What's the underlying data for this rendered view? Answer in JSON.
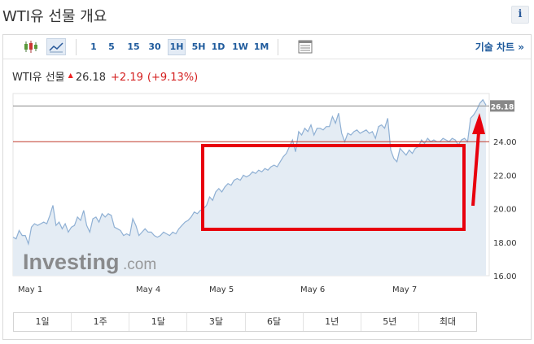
{
  "header": {
    "title": "WTI유 선물 개요",
    "info_glyph": "i"
  },
  "toolbar": {
    "timeframes": [
      "1",
      "5",
      "15",
      "30",
      "1H",
      "5H",
      "1D",
      "1W",
      "1M"
    ],
    "active_timeframe": "1H",
    "tech_chart_label": "기술 차트 »"
  },
  "quote": {
    "name": "WTI유 선물",
    "price": "26.18",
    "change": "+2.19",
    "change_pct": "(+9.13%)",
    "change_color": "#d42020"
  },
  "watermark": {
    "brand": "Investing",
    "suffix": ".com"
  },
  "chart_data": {
    "type": "area",
    "ylim": [
      16,
      27
    ],
    "y_ticks": [
      "16.00",
      "18.00",
      "20.00",
      "22.00",
      "24.00"
    ],
    "x_labels": [
      "May 1",
      "May 4",
      "May 5",
      "May 6",
      "May 7"
    ],
    "last_price_label": "26.18",
    "last_price": 26.18,
    "reference_level": 24.0,
    "series": [
      {
        "values": [
          18.3,
          18.2,
          18.7,
          18.4,
          18.4,
          17.9,
          18.9,
          19.1,
          19.0,
          19.1,
          19.2,
          19.1,
          19.6,
          20.2,
          19.0,
          19.2,
          18.8,
          19.1,
          18.6,
          18.9,
          19.0,
          19.5,
          19.3,
          19.9,
          19.0,
          18.6,
          19.4,
          19.5,
          19.2,
          19.7,
          19.5,
          19.7,
          19.6,
          18.9,
          18.8,
          18.7,
          18.4,
          18.5,
          18.4,
          19.4,
          19.0,
          18.4,
          18.6,
          18.8,
          18.6,
          18.6,
          18.4,
          18.3,
          18.4,
          18.6,
          18.5,
          18.4,
          18.6,
          18.5,
          18.8,
          19.0,
          19.2,
          19.3,
          19.5,
          19.8,
          19.7,
          19.9,
          20.0,
          20.2,
          20.7,
          20.5,
          21.0,
          21.2,
          21.0,
          21.3,
          21.5,
          21.4,
          21.7,
          21.8,
          21.7,
          22.0,
          21.9,
          22.0,
          22.2,
          22.1,
          22.3,
          22.2,
          22.4,
          22.3,
          22.5,
          22.6,
          22.5,
          22.8,
          23.1,
          23.3,
          23.7,
          24.1,
          23.4,
          24.6,
          24.4,
          24.8,
          24.6,
          25.0,
          24.4,
          24.8,
          24.8,
          24.7,
          24.9,
          24.9,
          25.5,
          25.1,
          25.7,
          24.5,
          24.0,
          24.5,
          24.4,
          24.6,
          24.7,
          24.5,
          24.6,
          24.7,
          24.5,
          24.6,
          24.2,
          24.9,
          25.0,
          24.8,
          25.4,
          23.5,
          23.0,
          22.8,
          23.6,
          23.4,
          23.2,
          23.5,
          23.3,
          23.6,
          23.7,
          24.1,
          23.9,
          24.2,
          24.0,
          24.1,
          24.0,
          24.0,
          24.2,
          24.1,
          24.0,
          24.2,
          24.1,
          23.8,
          24.1,
          24.2,
          24.0,
          25.4,
          25.6,
          25.9,
          26.3,
          26.5,
          26.18
        ]
      }
    ]
  },
  "annotations": {
    "box_color": "#e8000d",
    "arrow_color": "#e8000d"
  },
  "ranges": [
    "1일",
    "1주",
    "1달",
    "3달",
    "6달",
    "1년",
    "5년",
    "최대"
  ]
}
